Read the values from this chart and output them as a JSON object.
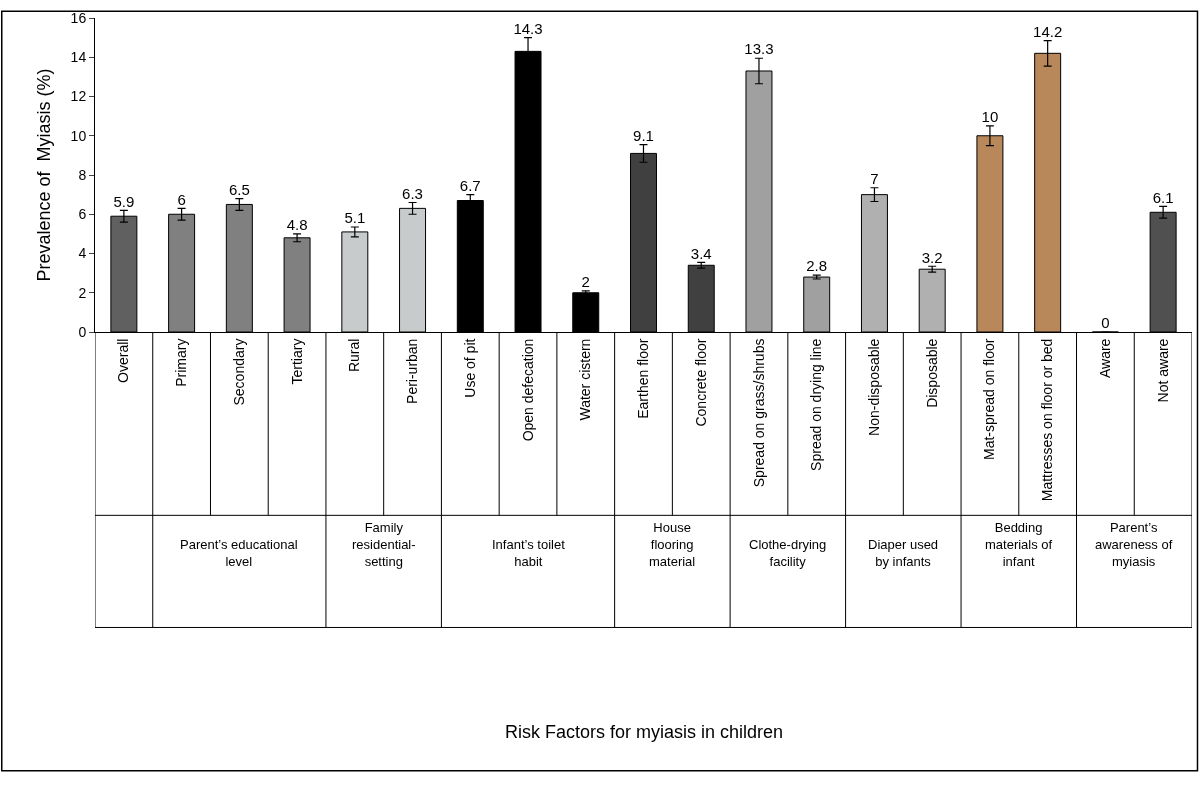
{
  "chart_data": {
    "type": "bar",
    "ylabel": "Prevalence of  Myiasis (%)",
    "categories": [
      "Overall",
      "Primary",
      "Secondary",
      "Tertiary",
      "Rural",
      "Peri-urban",
      "Use of pit",
      "Open defecation",
      "Water cistern",
      "Earthen floor",
      "Concrete floor",
      "Spread on grass/shrubs",
      "Spread on drying line",
      "Non-disposable",
      "Disposable",
      "Mat-spread on floor",
      "Mattresses on floor or bed",
      "Aware",
      "Not aware"
    ],
    "values": [
      5.9,
      6,
      6.5,
      4.8,
      5.1,
      6.3,
      6.7,
      14.3,
      2,
      9.1,
      3.4,
      13.3,
      2.8,
      7,
      3.2,
      10,
      14.2,
      0,
      6.1
    ],
    "errors": [
      0.3,
      0.3,
      0.3,
      0.2,
      0.25,
      0.3,
      0.3,
      0.7,
      0.1,
      0.45,
      0.15,
      0.65,
      0.1,
      0.35,
      0.15,
      0.5,
      0.65,
      0,
      0.3
    ],
    "colors": [
      "#606060",
      "#808080",
      "#808080",
      "#808080",
      "#c8cbcc",
      "#c8cbcc",
      "#000000",
      "#000000",
      "#000000",
      "#404040",
      "#404040",
      "#a0a0a0",
      "#a0a0a0",
      "#b0b0b0",
      "#b0b0b0",
      "#b8875a",
      "#b8875a",
      "#000000",
      "#505050"
    ],
    "data_labels": true,
    "ylim": [
      0,
      16
    ],
    "yticks": [
      0,
      2,
      4,
      6,
      8,
      10,
      12,
      14,
      16
    ],
    "annotations": [
      "Parent’s educational level",
      "Family residential-setting",
      "Infant’s toilet habit",
      "House flooring material",
      "Clothe-drying facility",
      "Diaper used by infants",
      "Bedding materials of infant",
      "Parent’s awareness of myiasis",
      "Risk Factors for myiasis in children"
    ]
  }
}
